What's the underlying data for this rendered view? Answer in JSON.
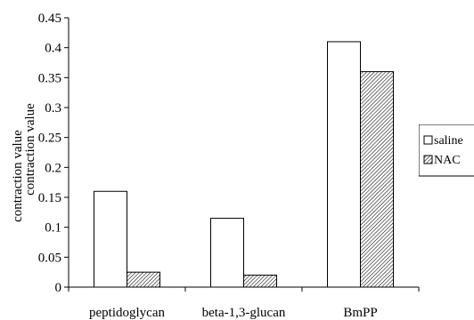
{
  "chart_data": {
    "type": "bar",
    "categories": [
      "peptidoglycan",
      "beta-1,3-glucan",
      "BmPP"
    ],
    "series": [
      {
        "name": "saline",
        "values": [
          0.16,
          0.115,
          0.41
        ],
        "fill": "#ffffff"
      },
      {
        "name": "NAC",
        "values": [
          0.025,
          0.02,
          0.36
        ],
        "fill": "hatched"
      }
    ],
    "ylabel": "contraction value",
    "ylabel_overlay": "contraction value",
    "ylim": [
      0,
      0.45
    ],
    "yticks": [
      0,
      0.05,
      0.1,
      0.15,
      0.2,
      0.25,
      0.3,
      0.35,
      0.4,
      0.45
    ],
    "ytick_labels": [
      "0",
      "0.05",
      "0.1",
      "0.15",
      "0.2",
      "0.25",
      "0.3",
      "0.35",
      "0.4",
      "0.45"
    ],
    "grid": false,
    "legend_position": "right",
    "legend_visible_labels": [
      "saline",
      "NAC"
    ],
    "colors": {
      "bar_outline": "#000000",
      "axis": "#000000",
      "hatch": "#000000"
    }
  }
}
